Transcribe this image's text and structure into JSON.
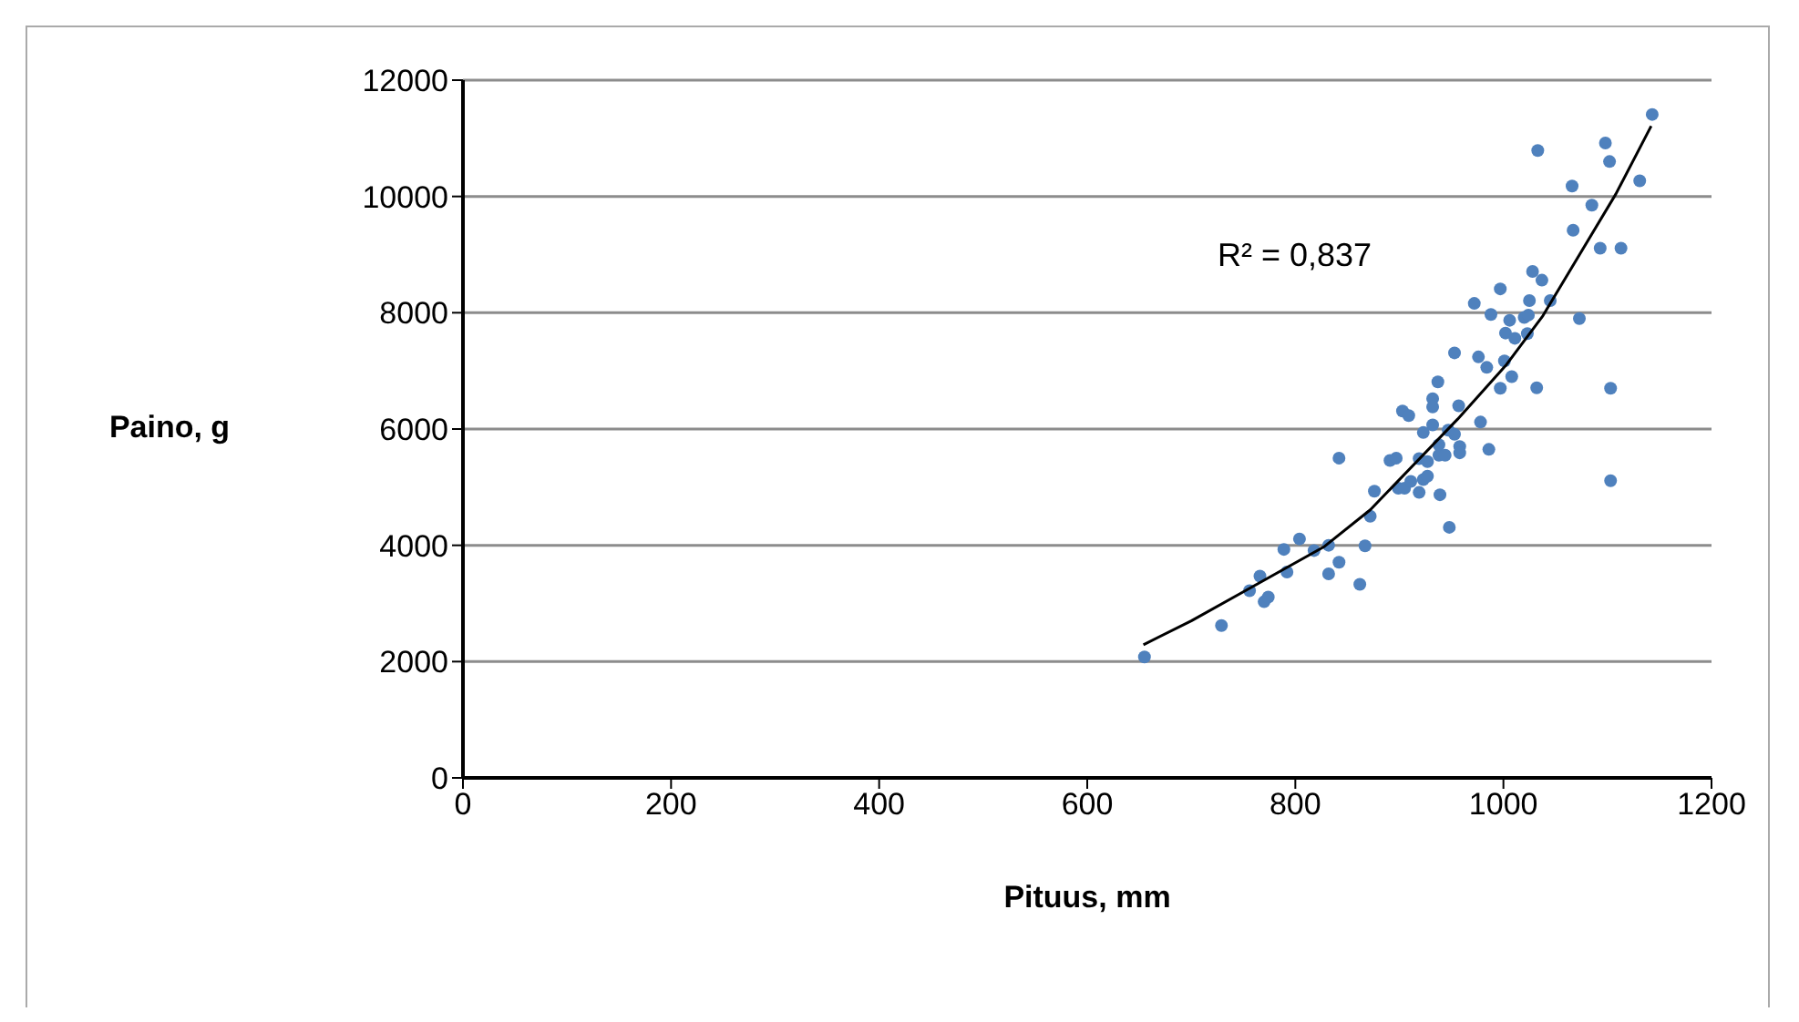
{
  "chart_data": {
    "type": "scatter",
    "xlabel": "Pituus, mm",
    "ylabel": "Paino, g",
    "xlim": [
      0,
      1200
    ],
    "xticks": [
      0,
      200,
      400,
      600,
      800,
      1000,
      1200
    ],
    "ylim": [
      0,
      12000
    ],
    "yticks": [
      0,
      2000,
      4000,
      6000,
      8000,
      10000,
      12000
    ],
    "grid": "y",
    "marker": "circle",
    "annotations": [
      "R² = 0,837"
    ],
    "series": [
      {
        "color": "#4f81bd",
        "x": [
          655,
          729,
          756,
          766,
          770,
          774,
          792,
          789,
          804,
          818,
          832,
          832,
          842,
          842,
          862,
          867,
          872,
          876,
          891,
          897,
          899,
          905,
          911,
          919,
          919,
          923,
          927,
          927,
          939,
          938,
          944,
          948,
          938,
          958,
          958,
          953,
          947,
          986,
          978,
          923,
          932,
          903,
          909,
          932,
          932,
          937,
          957,
          984,
          997,
          1008,
          1032,
          1103,
          1103,
          1143,
          1098,
          1102,
          1033,
          1131,
          1066,
          1085,
          1067,
          1093,
          1113,
          1028,
          1037,
          997,
          972,
          1025,
          1045,
          988,
          1006,
          1020,
          1024,
          1073,
          1002,
          1011,
          1023,
          953,
          976,
          1001
        ],
        "values": [
          2080,
          2620,
          3220,
          3470,
          3030,
          3110,
          3540,
          3930,
          4110,
          3910,
          4000,
          3510,
          3710,
          5500,
          3330,
          3990,
          4500,
          4930,
          5460,
          5500,
          4980,
          4980,
          5100,
          4910,
          5490,
          5130,
          5190,
          5440,
          4870,
          5550,
          5550,
          4310,
          5730,
          5700,
          5590,
          5910,
          5980,
          5650,
          6120,
          5940,
          6070,
          6310,
          6230,
          6520,
          6380,
          6810,
          6400,
          7060,
          6700,
          6900,
          6710,
          6700,
          5110,
          11410,
          10920,
          10600,
          10790,
          10270,
          10180,
          9850,
          9420,
          9110,
          9110,
          8710,
          8560,
          8410,
          8160,
          8210,
          8210,
          7970,
          7870,
          7920,
          7960,
          7900,
          7650,
          7560,
          7640,
          7310,
          7240,
          7170
        ]
      },
      {
        "type": "line",
        "color": "#000000",
        "marker": "none",
        "x": [
          654,
          700,
          750,
          828,
          872,
          956,
          1003,
          1038,
          1108,
          1142
        ],
        "values": [
          2290,
          2700,
          3200,
          3980,
          4610,
          6170,
          7110,
          7950,
          10040,
          11210
        ]
      }
    ]
  }
}
